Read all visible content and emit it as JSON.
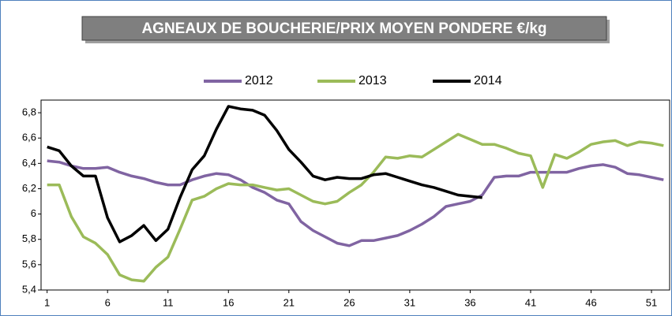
{
  "chart_data": {
    "type": "line",
    "title": "AGNEAUX DE BOUCHERIE/PRIX MOYEN PONDERE €/kg",
    "x": [
      1,
      2,
      3,
      4,
      5,
      6,
      7,
      8,
      9,
      10,
      11,
      12,
      13,
      14,
      15,
      16,
      17,
      18,
      19,
      20,
      21,
      22,
      23,
      24,
      25,
      26,
      27,
      28,
      29,
      30,
      31,
      32,
      33,
      34,
      35,
      36,
      37,
      38,
      39,
      40,
      41,
      42,
      43,
      44,
      45,
      46,
      47,
      48,
      49,
      50,
      51,
      52
    ],
    "series": [
      {
        "name": "2012",
        "color": "#8064a2",
        "values": [
          6.42,
          6.41,
          6.38,
          6.36,
          6.36,
          6.37,
          6.33,
          6.3,
          6.28,
          6.25,
          6.23,
          6.23,
          6.27,
          6.3,
          6.32,
          6.31,
          6.27,
          6.21,
          6.17,
          6.11,
          6.08,
          5.94,
          5.87,
          5.82,
          5.77,
          5.75,
          5.79,
          5.79,
          5.81,
          5.83,
          5.87,
          5.92,
          5.98,
          6.06,
          6.08,
          6.1,
          6.15,
          6.29,
          6.3,
          6.3,
          6.33,
          6.33,
          6.33,
          6.33,
          6.36,
          6.38,
          6.39,
          6.37,
          6.32,
          6.31,
          6.29,
          6.27
        ]
      },
      {
        "name": "2013",
        "color": "#9bbb59",
        "values": [
          6.23,
          6.23,
          5.98,
          5.82,
          5.77,
          5.68,
          5.52,
          5.48,
          5.47,
          5.58,
          5.66,
          5.88,
          6.11,
          6.14,
          6.2,
          6.24,
          6.23,
          6.23,
          6.21,
          6.19,
          6.2,
          6.15,
          6.1,
          6.08,
          6.1,
          6.17,
          6.23,
          6.33,
          6.45,
          6.44,
          6.46,
          6.45,
          6.51,
          6.57,
          6.63,
          6.59,
          6.55,
          6.55,
          6.52,
          6.48,
          6.46,
          6.21,
          6.47,
          6.44,
          6.49,
          6.55,
          6.57,
          6.58,
          6.54,
          6.57,
          6.56,
          6.54
        ]
      },
      {
        "name": "2014",
        "color": "#000000",
        "values": [
          6.53,
          6.5,
          6.38,
          6.3,
          6.3,
          5.97,
          5.78,
          5.83,
          5.91,
          5.79,
          5.88,
          6.13,
          6.35,
          6.46,
          6.67,
          6.85,
          6.83,
          6.82,
          6.78,
          6.66,
          6.51,
          6.41,
          6.3,
          6.27,
          6.29,
          6.28,
          6.28,
          6.31,
          6.32,
          6.29,
          6.26,
          6.23,
          6.21,
          6.18,
          6.15,
          6.14,
          6.13,
          null,
          null,
          null,
          null,
          null,
          null,
          null,
          null,
          null,
          null,
          null,
          null,
          null,
          null,
          null
        ]
      }
    ],
    "xlim": [
      0.5,
      52.5
    ],
    "xticks": [
      1,
      6,
      11,
      16,
      21,
      26,
      31,
      36,
      41,
      46,
      51
    ],
    "ylim": [
      5.4,
      6.9
    ],
    "yticks": [
      {
        "value": 5.4,
        "label": "5,4"
      },
      {
        "value": 5.6,
        "label": "5,6"
      },
      {
        "value": 5.8,
        "label": "5,8"
      },
      6,
      {
        "value": 6.2,
        "label": "6,2"
      },
      {
        "value": 6.4,
        "label": "6,4"
      },
      {
        "value": 6.6,
        "label": "6,6"
      },
      {
        "value": 6.8,
        "label": "6,8"
      }
    ],
    "grid": false,
    "legend": "top"
  }
}
